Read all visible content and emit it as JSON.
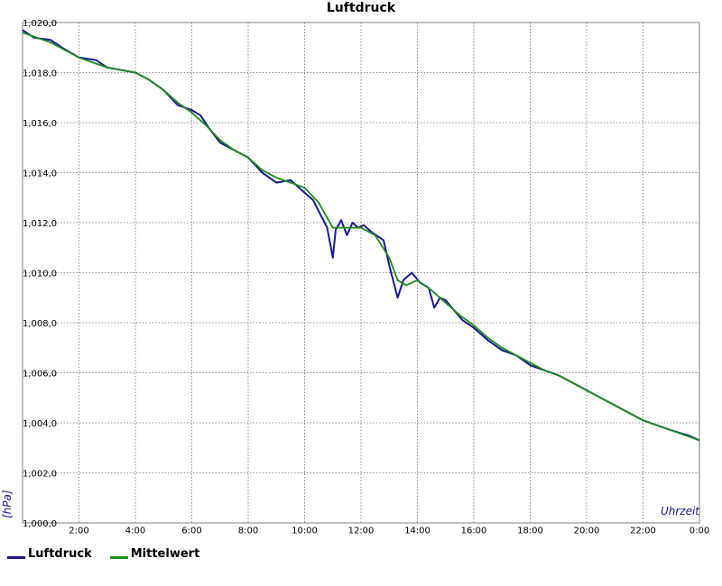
{
  "chart_data": {
    "type": "line",
    "title": "Luftdruck",
    "ylabel": "[hPa]",
    "xlabel": "Uhrzeit",
    "ylim": [
      1000.0,
      1020.0
    ],
    "xlim": [
      0,
      24
    ],
    "y_ticks": [
      "1,000,0",
      "1,002,0",
      "1,004,0",
      "1,006,0",
      "1,008,0",
      "1,010,0",
      "1,012,0",
      "1,014,0",
      "1,016,0",
      "1,018,0",
      "1,020,0"
    ],
    "x_ticks": [
      "2:00",
      "4:00",
      "6:00",
      "8:00",
      "10:00",
      "12:00",
      "14:00",
      "16:00",
      "18:00",
      "20:00",
      "22:00",
      "0:00"
    ],
    "grid": true,
    "legend_position": "bottom-left",
    "series": [
      {
        "name": "Luftdruck",
        "color": "#1a1a8c",
        "x": [
          0,
          0.4,
          1.0,
          1.4,
          2.0,
          2.6,
          3.0,
          3.5,
          4.0,
          4.5,
          5.0,
          5.5,
          6.0,
          6.3,
          6.6,
          7.0,
          7.5,
          8.0,
          8.5,
          9.0,
          9.5,
          9.8,
          10.3,
          10.8,
          11.0,
          11.1,
          11.3,
          11.5,
          11.7,
          11.9,
          12.1,
          12.4,
          12.8,
          13.0,
          13.3,
          13.5,
          13.8,
          14.1,
          14.4,
          14.6,
          14.8,
          15.0,
          15.3,
          15.6,
          16.0,
          16.5,
          17.0,
          17.5,
          18.0,
          18.5,
          19.0,
          19.5,
          20.0,
          20.5,
          21.0,
          21.5,
          22.0,
          22.5,
          23.0,
          23.6,
          24.0
        ],
        "y": [
          1019.7,
          1019.4,
          1019.3,
          1019.0,
          1018.6,
          1018.5,
          1018.2,
          1018.1,
          1018.0,
          1017.7,
          1017.3,
          1016.7,
          1016.5,
          1016.3,
          1015.8,
          1015.2,
          1014.9,
          1014.6,
          1014.0,
          1013.6,
          1013.7,
          1013.4,
          1012.9,
          1011.8,
          1010.6,
          1011.7,
          1012.1,
          1011.5,
          1012.0,
          1011.8,
          1011.9,
          1011.6,
          1011.3,
          1010.3,
          1009.0,
          1009.7,
          1010.0,
          1009.6,
          1009.4,
          1008.6,
          1009.0,
          1008.9,
          1008.5,
          1008.1,
          1007.8,
          1007.3,
          1006.9,
          1006.7,
          1006.3,
          1006.1,
          1005.9,
          1005.6,
          1005.3,
          1005.0,
          1004.7,
          1004.4,
          1004.1,
          1003.9,
          1003.7,
          1003.5,
          1003.3
        ]
      },
      {
        "name": "Mittelwert",
        "color": "#1f8a1f",
        "x": [
          0,
          0.5,
          1.0,
          1.5,
          2.0,
          2.5,
          3.0,
          3.5,
          4.0,
          4.5,
          5.0,
          5.5,
          6.0,
          6.5,
          7.0,
          7.5,
          8.0,
          8.5,
          9.0,
          9.5,
          10.0,
          10.5,
          11.0,
          11.5,
          12.0,
          12.5,
          13.0,
          13.3,
          13.6,
          14.0,
          14.5,
          15.0,
          15.5,
          16.0,
          16.5,
          17.0,
          17.5,
          18.0,
          18.5,
          19.0,
          19.5,
          20.0,
          20.5,
          21.0,
          21.5,
          22.0,
          22.5,
          23.0,
          23.5,
          24.0
        ],
        "y": [
          1019.6,
          1019.4,
          1019.2,
          1018.9,
          1018.6,
          1018.4,
          1018.2,
          1018.1,
          1018.0,
          1017.7,
          1017.3,
          1016.8,
          1016.4,
          1015.9,
          1015.3,
          1014.9,
          1014.6,
          1014.1,
          1013.8,
          1013.6,
          1013.4,
          1012.8,
          1011.8,
          1011.8,
          1011.8,
          1011.5,
          1010.6,
          1009.7,
          1009.5,
          1009.7,
          1009.3,
          1008.8,
          1008.3,
          1007.9,
          1007.4,
          1007.0,
          1006.7,
          1006.4,
          1006.1,
          1005.9,
          1005.6,
          1005.3,
          1005.0,
          1004.7,
          1004.4,
          1004.1,
          1003.9,
          1003.7,
          1003.5,
          1003.3
        ]
      }
    ]
  }
}
